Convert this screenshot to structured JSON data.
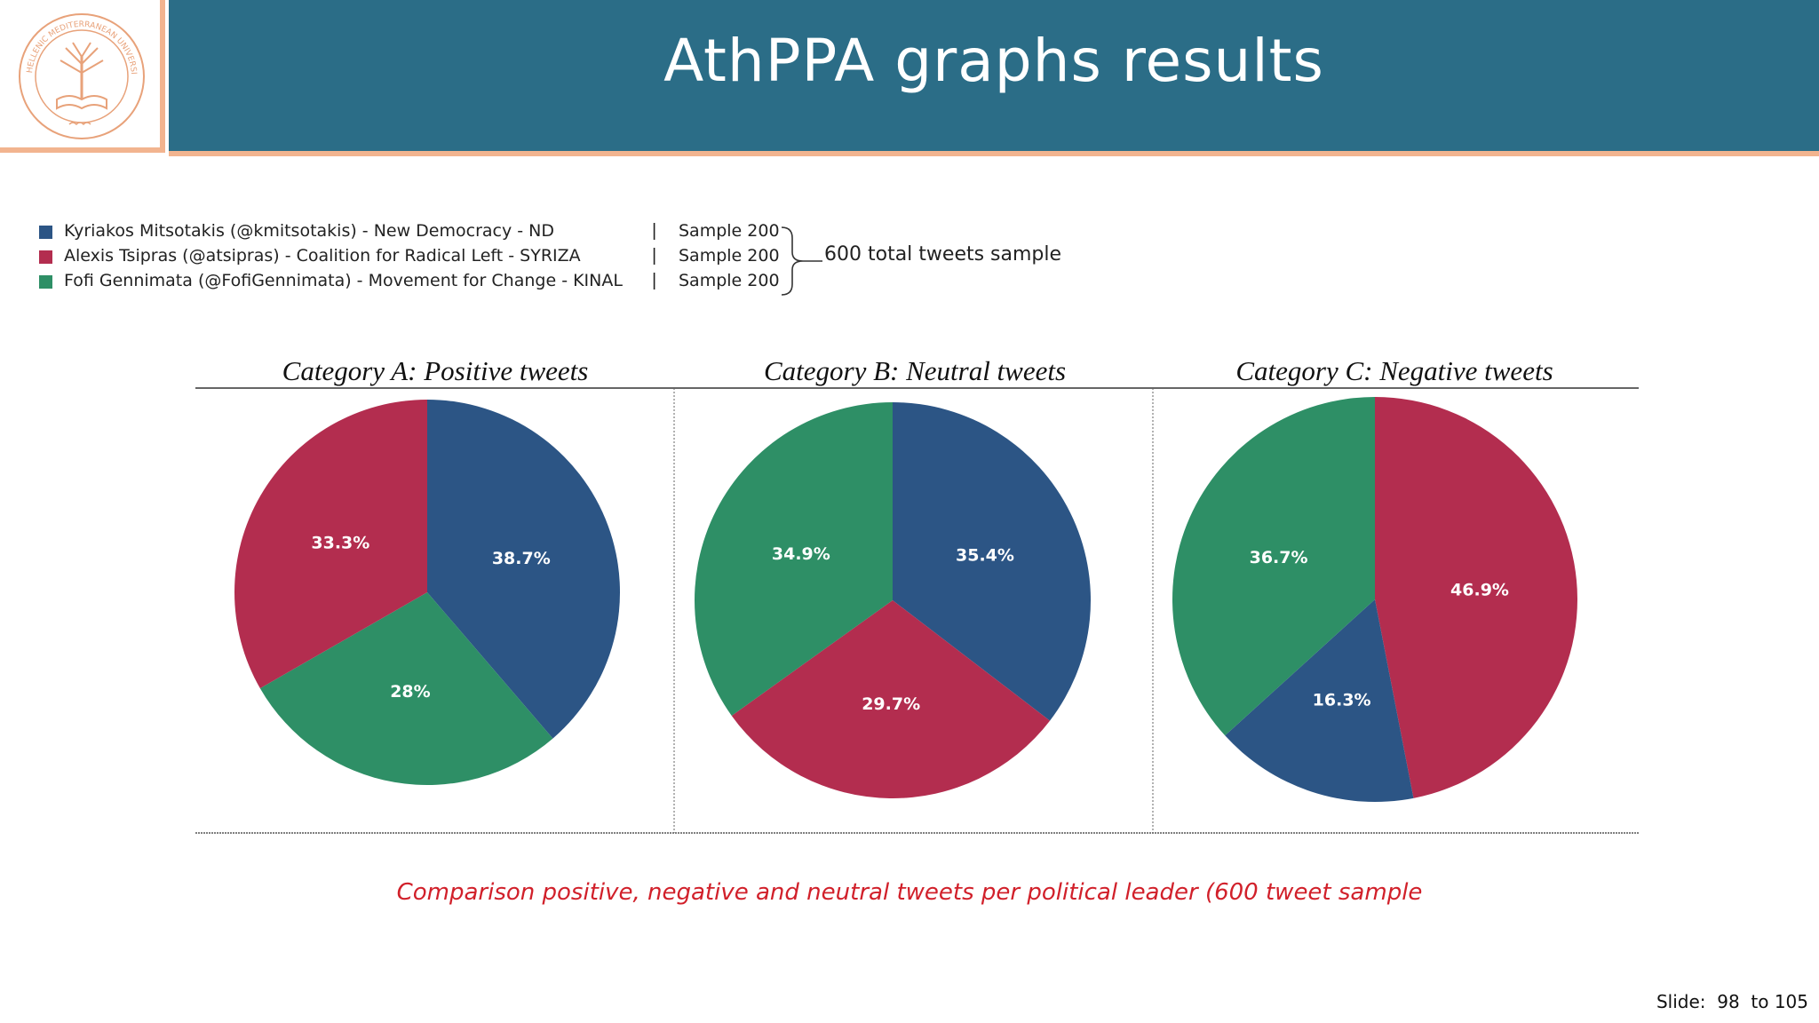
{
  "header": {
    "title": "AthPPA graphs results",
    "logo_text": "HELLENIC MEDITERRANEAN UNIVERSITY"
  },
  "legend": {
    "items": [
      {
        "label": "Kyriakos Mitsotakis (@kmitsotakis) - New Democracy - ND",
        "sample": "Sample 200",
        "color": "#2c5585"
      },
      {
        "label": "Alexis Tsipras (@atsipras) - Coalition for Radical Left - SYRIZA",
        "sample": "Sample 200",
        "color": "#b32d4f"
      },
      {
        "label": "Fofi Gennimata (@FofiGennimata) - Movement for Change - KINAL",
        "sample": "Sample 200",
        "color": "#2e8f66"
      }
    ],
    "separator": "|",
    "total_label": "600 total tweets sample"
  },
  "chart_data": [
    {
      "type": "pie",
      "title": "Category A: Positive tweets",
      "slices": [
        {
          "series": "Kyriakos Mitsotakis",
          "value": 38.7,
          "label": "38.7%",
          "color": "#2c5585"
        },
        {
          "series": "Fofi Gennimata",
          "value": 28,
          "label": "28%",
          "color": "#2e8f66"
        },
        {
          "series": "Alexis Tsipras",
          "value": 33.3,
          "label": "33.3%",
          "color": "#b32d4f"
        }
      ]
    },
    {
      "type": "pie",
      "title": "Category B: Neutral tweets",
      "slices": [
        {
          "series": "Kyriakos Mitsotakis",
          "value": 35.4,
          "label": "35.4%",
          "color": "#2c5585"
        },
        {
          "series": "Alexis Tsipras",
          "value": 29.7,
          "label": "29.7%",
          "color": "#b32d4f"
        },
        {
          "series": "Fofi Gennimata",
          "value": 34.9,
          "label": "34.9%",
          "color": "#2e8f66"
        }
      ]
    },
    {
      "type": "pie",
      "title": "Category C: Negative tweets",
      "slices": [
        {
          "series": "Alexis Tsipras",
          "value": 46.9,
          "label": "46.9%",
          "color": "#b32d4f"
        },
        {
          "series": "Kyriakos Mitsotakis",
          "value": 16.3,
          "label": "16.3%",
          "color": "#2c5585"
        },
        {
          "series": "Fofi Gennimata",
          "value": 36.7,
          "label": "36.7%",
          "color": "#2e8f66"
        }
      ]
    }
  ],
  "caption": "Comparison positive, negative and neutral tweets per political leader (600 tweet sample",
  "footer": {
    "slide_label": "Slide:  98  to 105"
  }
}
